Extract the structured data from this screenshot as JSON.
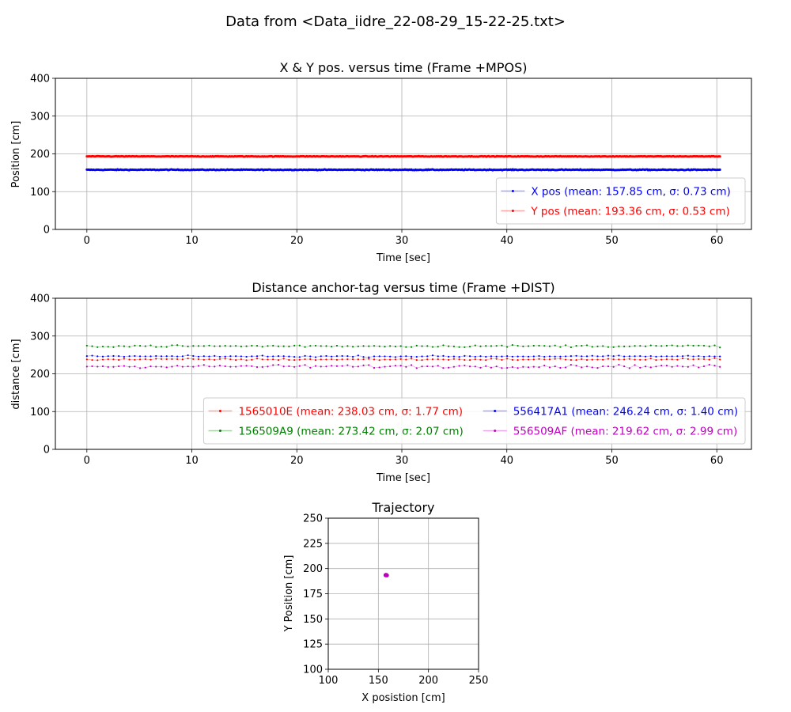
{
  "figure": {
    "title": "Data from <Data_iidre_22-08-29_15-22-25.txt>"
  },
  "chart_data": [
    {
      "type": "line",
      "title": "X & Y pos. versus time (Frame +MPOS)",
      "xlabel": "Time [sec]",
      "ylabel": "Position [cm]",
      "xlim": [
        -3,
        63.3
      ],
      "ylim": [
        0,
        400
      ],
      "xticks": [
        0,
        10,
        20,
        30,
        40,
        50,
        60
      ],
      "yticks": [
        0,
        100,
        200,
        300,
        400
      ],
      "grid": true,
      "legend_position": "lower right",
      "legend_columns": 1,
      "x_range": [
        0,
        60.3
      ],
      "sample_count": 600,
      "series": [
        {
          "name": "X pos (mean: 157.85 cm, σ: 0.73 cm)",
          "color": "#0000ff",
          "mean": 157.85,
          "std": 0.73
        },
        {
          "name": "Y pos (mean: 193.36 cm, σ: 0.53 cm)",
          "color": "#ff0000",
          "mean": 193.36,
          "std": 0.53
        }
      ]
    },
    {
      "type": "line",
      "title": "Distance anchor-tag versus time (Frame +DIST)",
      "xlabel": "Time [sec]",
      "ylabel": "distance [cm]",
      "xlim": [
        -3,
        63.3
      ],
      "ylim": [
        0,
        400
      ],
      "xticks": [
        0,
        10,
        20,
        30,
        40,
        50,
        60
      ],
      "yticks": [
        0,
        100,
        200,
        300,
        400
      ],
      "grid": true,
      "legend_position": "lower right",
      "legend_columns": 2,
      "x_range": [
        0,
        60.3
      ],
      "sample_count": 120,
      "series": [
        {
          "name": "1565010E (mean: 238.03 cm, σ: 1.77 cm)",
          "color": "#ff0000",
          "mean": 238.03,
          "std": 1.77
        },
        {
          "name": "156509A9 (mean: 273.42 cm, σ: 2.07 cm)",
          "color": "#008000",
          "mean": 273.42,
          "std": 2.07
        },
        {
          "name": "556417A1 (mean: 246.24 cm, σ: 1.40 cm)",
          "color": "#0000ff",
          "mean": 246.24,
          "std": 1.4
        },
        {
          "name": "556509AF (mean: 219.62 cm, σ: 2.99 cm)",
          "color": "#bf00bf",
          "mean": 219.62,
          "std": 2.99
        }
      ]
    },
    {
      "type": "scatter",
      "title": "Trajectory",
      "xlabel": "X posistion [cm]",
      "ylabel": "Y Position [cm]",
      "xlim": [
        100,
        250
      ],
      "ylim": [
        100,
        250
      ],
      "xticks": [
        100,
        150,
        200,
        250
      ],
      "yticks": [
        100,
        125,
        150,
        175,
        200,
        225,
        250
      ],
      "grid": true,
      "color": "#bf00bf",
      "center": [
        157.85,
        193.36
      ],
      "spread": [
        0.73,
        0.53
      ]
    }
  ]
}
